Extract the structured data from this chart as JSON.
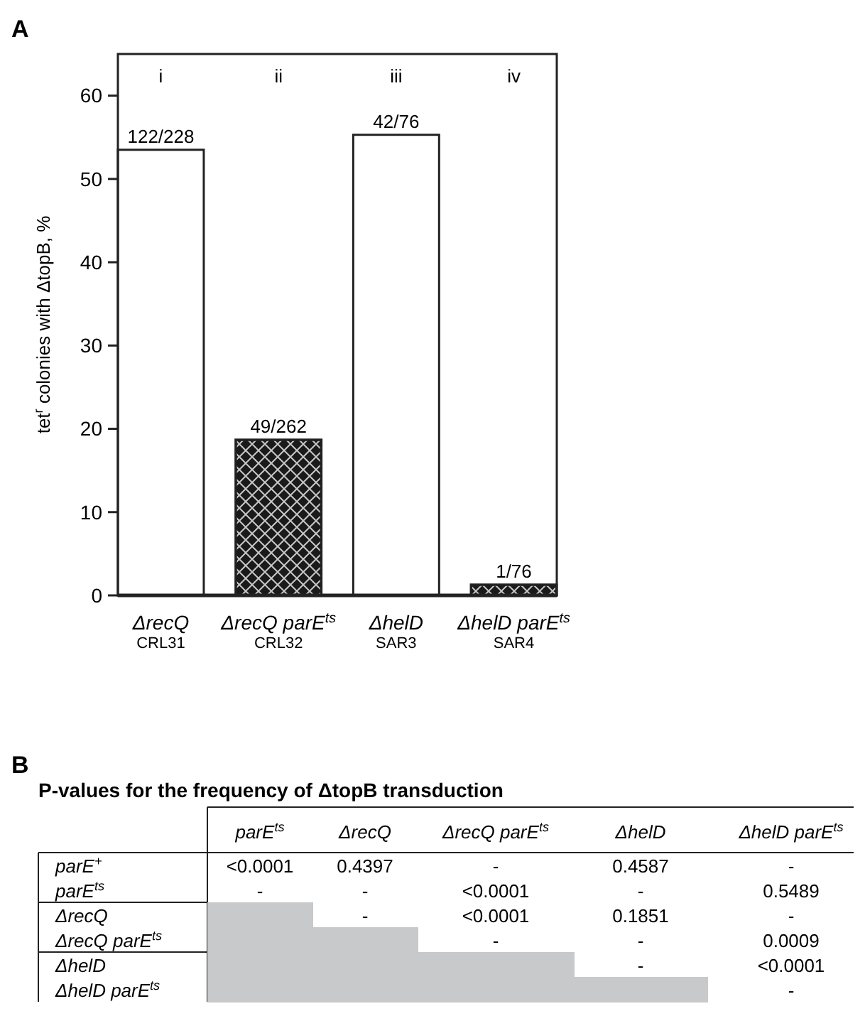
{
  "chart_data": [
    {
      "type": "bar",
      "ylabel": "tet$^{r}$ colonies with ΔtopB, %",
      "categories": [
        "ΔrecQ\nCRL31",
        "ΔrecQ parE$^{ts}$\nCRL32",
        "ΔhelD\nSAR3",
        "ΔhelD parE$^{ts}$\nSAR4"
      ],
      "values": [
        53.5,
        18.7,
        55.3,
        1.3
      ],
      "value_labels": [
        "122/228",
        "49/262",
        "42/76",
        "1/76"
      ],
      "colors": [
        "#ffffff",
        "#1a1a1a",
        "#ffffff",
        "#1a1a1a"
      ],
      "ylim": [
        0,
        65
      ],
      "yticks": [
        0,
        10,
        20,
        30,
        40,
        50,
        60
      ],
      "grid": false,
      "annotations": [
        "A",
        "i",
        "ii",
        "iii",
        "iv"
      ]
    },
    {
      "type": "other",
      "title": "P-values for the frequency of ΔtopB transduction",
      "annotations": [
        "B"
      ],
      "categories": [
        "parE$^{ts}$",
        "ΔrecQ",
        "ΔrecQ parE$^{ts}$",
        "ΔhelD",
        "ΔhelD parE$^{ts}$"
      ],
      "y_categories": [
        "parE$^{+}$",
        "parE$^{ts}$",
        "ΔrecQ",
        "ΔrecQ parE$^{ts}$",
        "ΔhelD",
        "ΔhelD parE$^{ts}$"
      ],
      "cell_labels": [
        [
          "<0.0001",
          "0.4397",
          "-",
          "0.4587",
          "-"
        ],
        [
          "-",
          "-",
          "<0.0001",
          "-",
          "0.5489"
        ],
        [
          null,
          "-",
          "<0.0001",
          "0.1851",
          "-"
        ],
        [
          null,
          null,
          "-",
          "-",
          "0.0009"
        ],
        [
          null,
          null,
          null,
          "-",
          "<0.0001"
        ],
        [
          null,
          null,
          null,
          null,
          "-"
        ]
      ]
    }
  ]
}
